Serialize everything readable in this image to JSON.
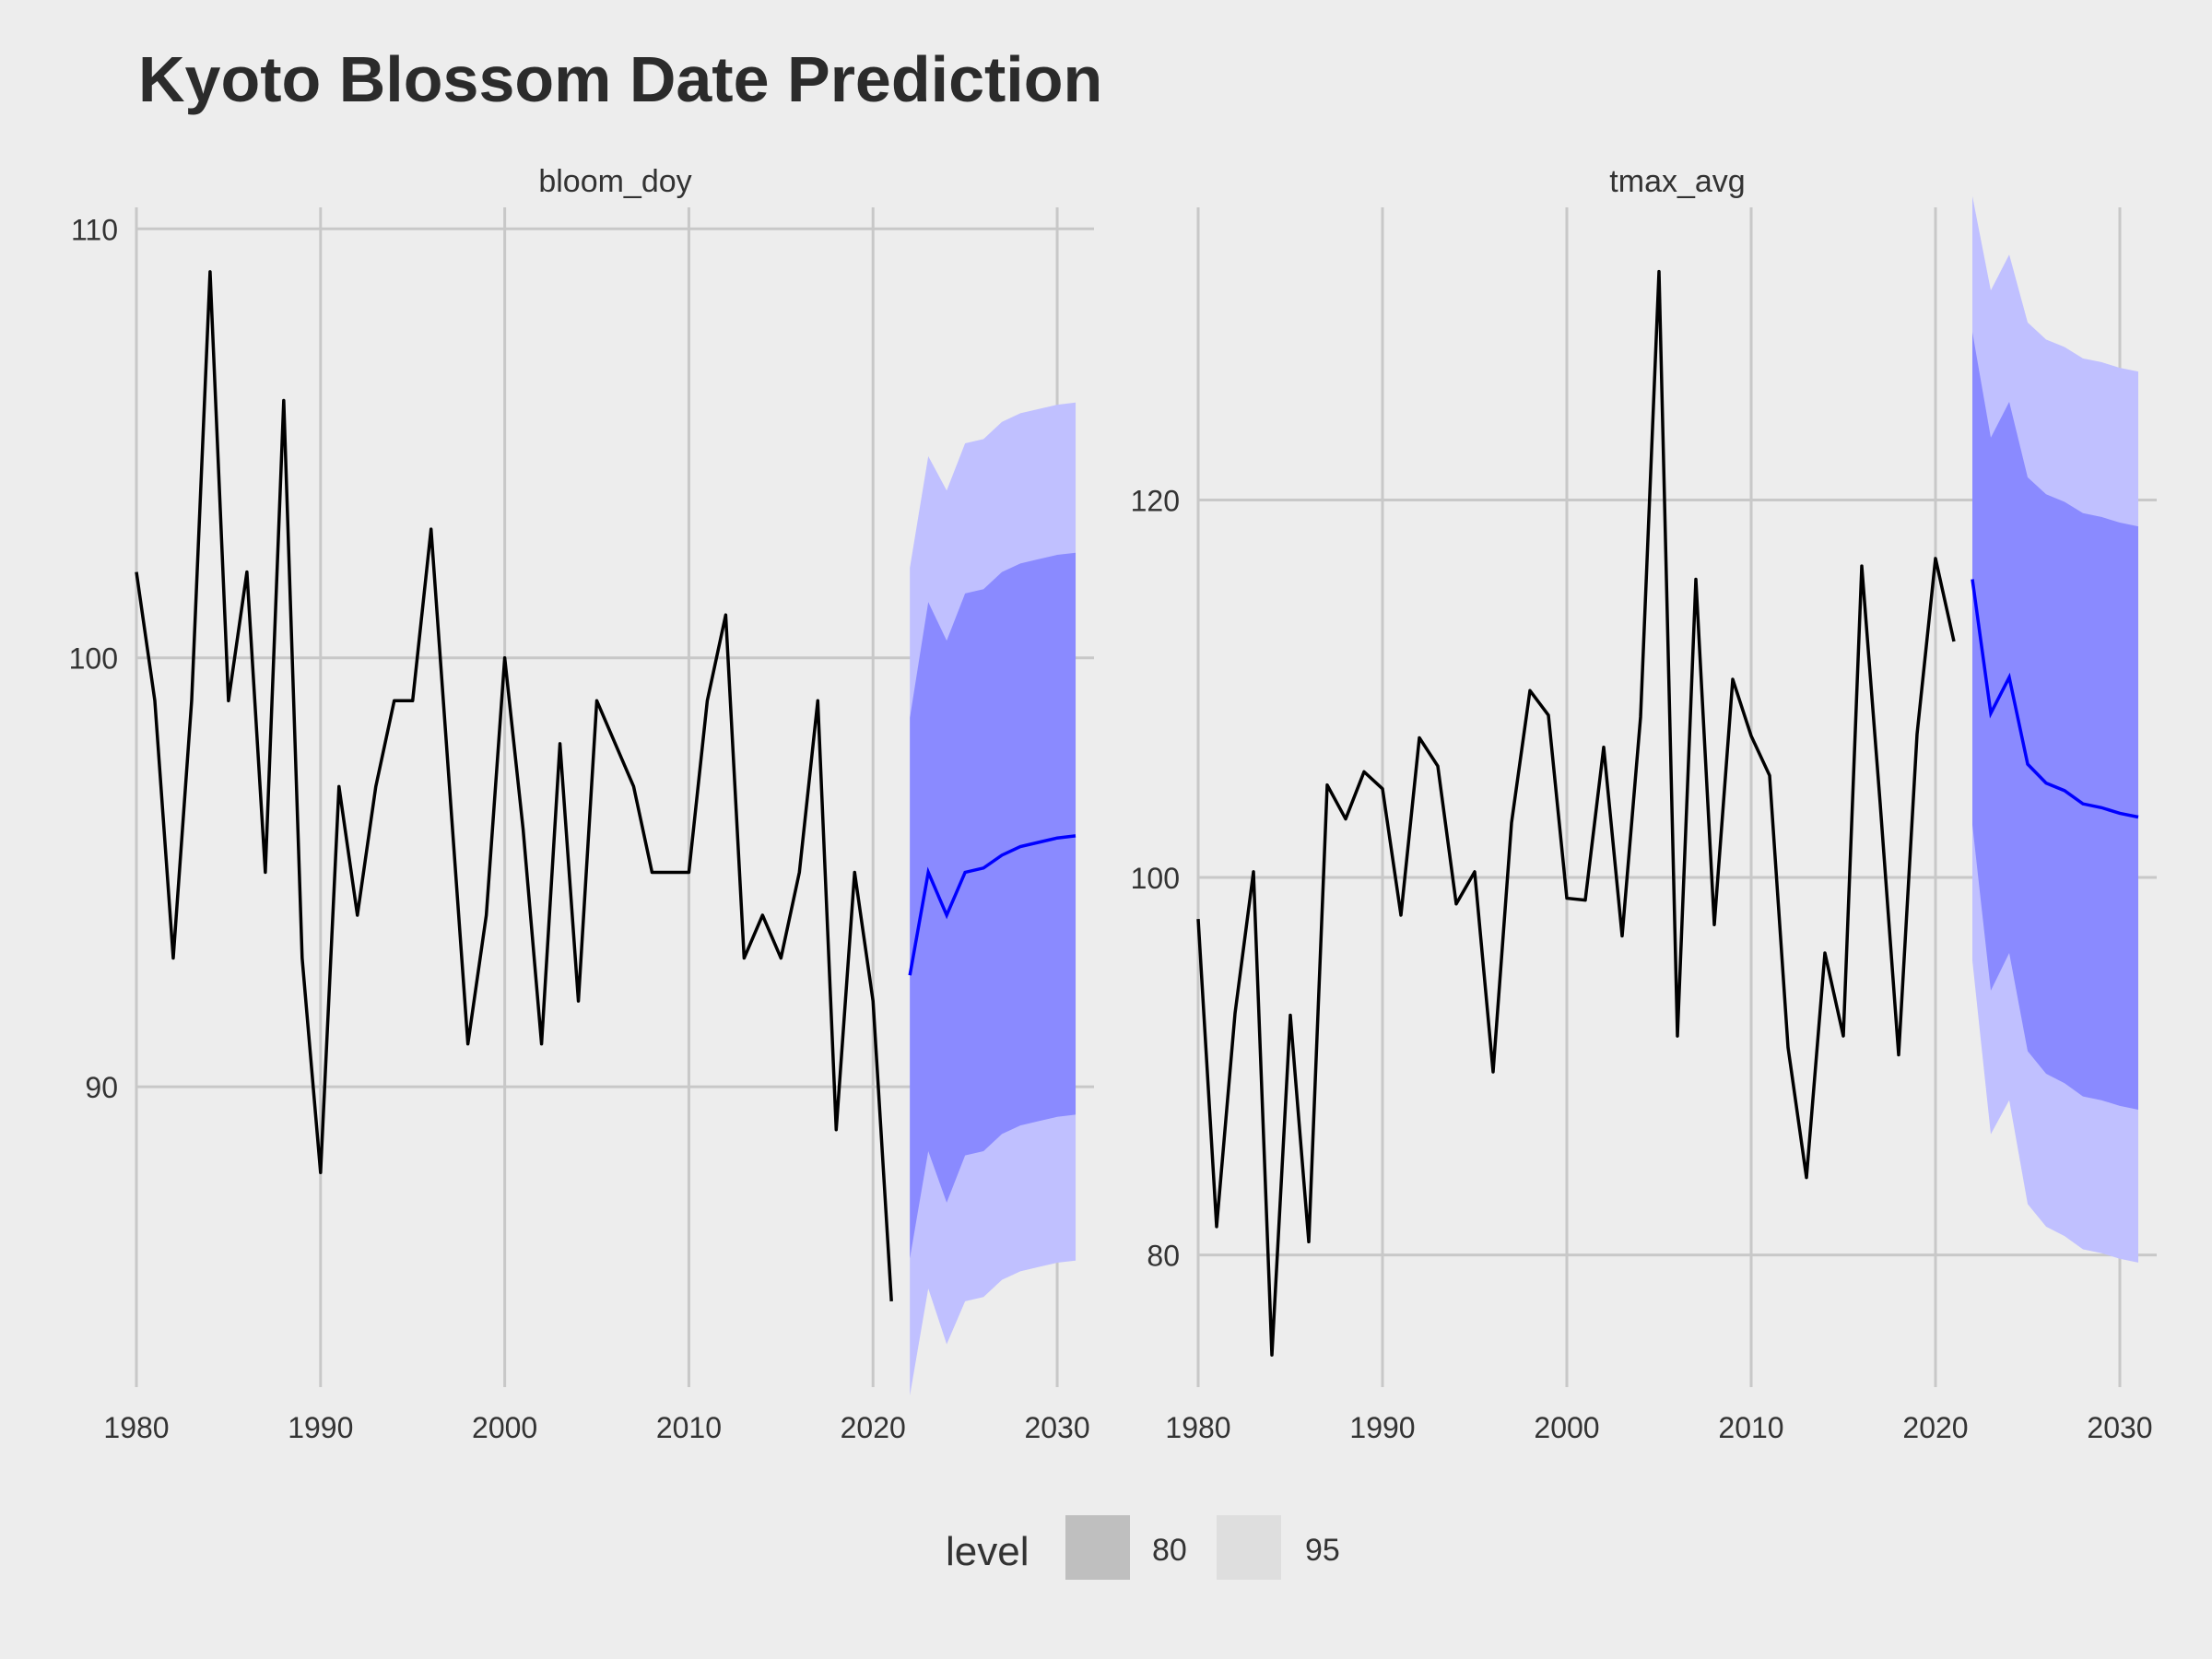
{
  "chart_data": {
    "type": "line",
    "title": "Kyoto Blossom Date Prediction",
    "legend": {
      "title": "level",
      "position": "bottom",
      "entries": [
        {
          "label": "80",
          "color": "#BFBFBF"
        },
        {
          "label": "95",
          "color": "#DEDEDE"
        }
      ]
    },
    "colors": {
      "background": "#EDEDED",
      "grid": "#C8C8C8",
      "history_line": "#000000",
      "forecast_line": "#0000FF",
      "band_80": "#8A8AFF",
      "band_95": "#C0C0FF",
      "text": "#333333"
    },
    "panels": [
      {
        "facet": "bloom_doy",
        "xlim": [
          1980,
          2032
        ],
        "ylim": [
          83,
          110.5
        ],
        "x_ticks": [
          1980,
          1990,
          2000,
          2010,
          2020,
          2030
        ],
        "y_ticks": [
          90,
          100,
          110
        ],
        "history": {
          "x": [
            1980,
            1981,
            1982,
            1983,
            1984,
            1985,
            1986,
            1987,
            1988,
            1989,
            1990,
            1991,
            1992,
            1993,
            1994,
            1995,
            1996,
            1997,
            1998,
            1999,
            2000,
            2001,
            2002,
            2003,
            2004,
            2005,
            2006,
            2007,
            2008,
            2009,
            2010,
            2011,
            2012,
            2013,
            2014,
            2015,
            2016,
            2017,
            2018,
            2019,
            2020,
            2021
          ],
          "y": [
            102,
            99,
            93,
            99,
            109,
            99,
            102,
            95,
            106,
            93,
            88,
            97,
            94,
            97,
            99,
            99,
            103,
            97,
            91,
            94,
            100,
            96,
            91,
            98,
            92,
            99,
            98,
            97,
            95,
            95,
            95,
            99,
            101,
            93,
            94,
            93,
            95,
            99,
            89,
            95,
            92,
            85
          ]
        },
        "forecast": {
          "x": [
            2022,
            2023,
            2024,
            2025,
            2026,
            2027,
            2028,
            2029,
            2030,
            2031
          ],
          "mean": [
            92.6,
            95.0,
            94.0,
            95.0,
            95.1,
            95.4,
            95.6,
            95.7,
            95.8,
            95.85
          ],
          "lo80": [
            86.0,
            88.5,
            87.3,
            88.4,
            88.5,
            88.9,
            89.1,
            89.2,
            89.3,
            89.35
          ],
          "hi80": [
            98.6,
            101.3,
            100.4,
            101.5,
            101.6,
            102.0,
            102.2,
            102.3,
            102.4,
            102.45
          ],
          "lo95": [
            82.8,
            85.3,
            84.0,
            85.0,
            85.1,
            85.5,
            85.7,
            85.8,
            85.9,
            85.95
          ],
          "hi95": [
            102.1,
            104.7,
            103.9,
            105.0,
            105.1,
            105.5,
            105.7,
            105.8,
            105.9,
            105.95
          ]
        }
      },
      {
        "facet": "tmax_avg",
        "xlim": [
          1980,
          2032
        ],
        "ylim": [
          73,
          135.5
        ],
        "x_ticks": [
          1980,
          1990,
          2000,
          2010,
          2020,
          2030
        ],
        "y_ticks": [
          80,
          100,
          120
        ],
        "history": {
          "x": [
            1980,
            1981,
            1982,
            1983,
            1984,
            1985,
            1986,
            1987,
            1988,
            1989,
            1990,
            1991,
            1992,
            1993,
            1994,
            1995,
            1996,
            1997,
            1998,
            1999,
            2000,
            2001,
            2002,
            2003,
            2004,
            2005,
            2006,
            2007,
            2008,
            2009,
            2010,
            2011,
            2012,
            2013,
            2014,
            2015,
            2016,
            2017,
            2018,
            2019,
            2020,
            2021
          ],
          "y": [
            97.8,
            81.5,
            92.8,
            100.3,
            74.7,
            92.7,
            80.7,
            104.9,
            103.1,
            105.6,
            104.7,
            98.0,
            107.4,
            105.9,
            98.6,
            100.3,
            89.7,
            102.9,
            109.9,
            108.6,
            98.9,
            98.8,
            106.9,
            96.9,
            108.5,
            132.1,
            91.6,
            115.8,
            97.5,
            110.5,
            107.5,
            105.4,
            91.0,
            84.1,
            96.0,
            91.6,
            116.5,
            103.9,
            90.6,
            107.6,
            116.9,
            112.5
          ]
        },
        "forecast": {
          "x": [
            2022,
            2023,
            2024,
            2025,
            2026,
            2027,
            2028,
            2029,
            2030,
            2031
          ],
          "mean": [
            115.8,
            108.7,
            110.6,
            106.0,
            105.0,
            104.6,
            103.9,
            103.7,
            103.4,
            103.2
          ],
          "lo80": [
            102.8,
            94.0,
            96.0,
            90.8,
            89.6,
            89.1,
            88.4,
            88.2,
            87.9,
            87.7
          ],
          "hi80": [
            128.9,
            123.3,
            125.2,
            121.2,
            120.3,
            119.9,
            119.3,
            119.1,
            118.8,
            118.6
          ],
          "lo95": [
            95.6,
            86.4,
            88.2,
            82.7,
            81.5,
            81.0,
            80.3,
            80.1,
            79.8,
            79.6
          ],
          "hi95": [
            136.1,
            131.1,
            133.0,
            129.4,
            128.5,
            128.1,
            127.5,
            127.3,
            127.0,
            126.8
          ]
        }
      }
    ]
  }
}
